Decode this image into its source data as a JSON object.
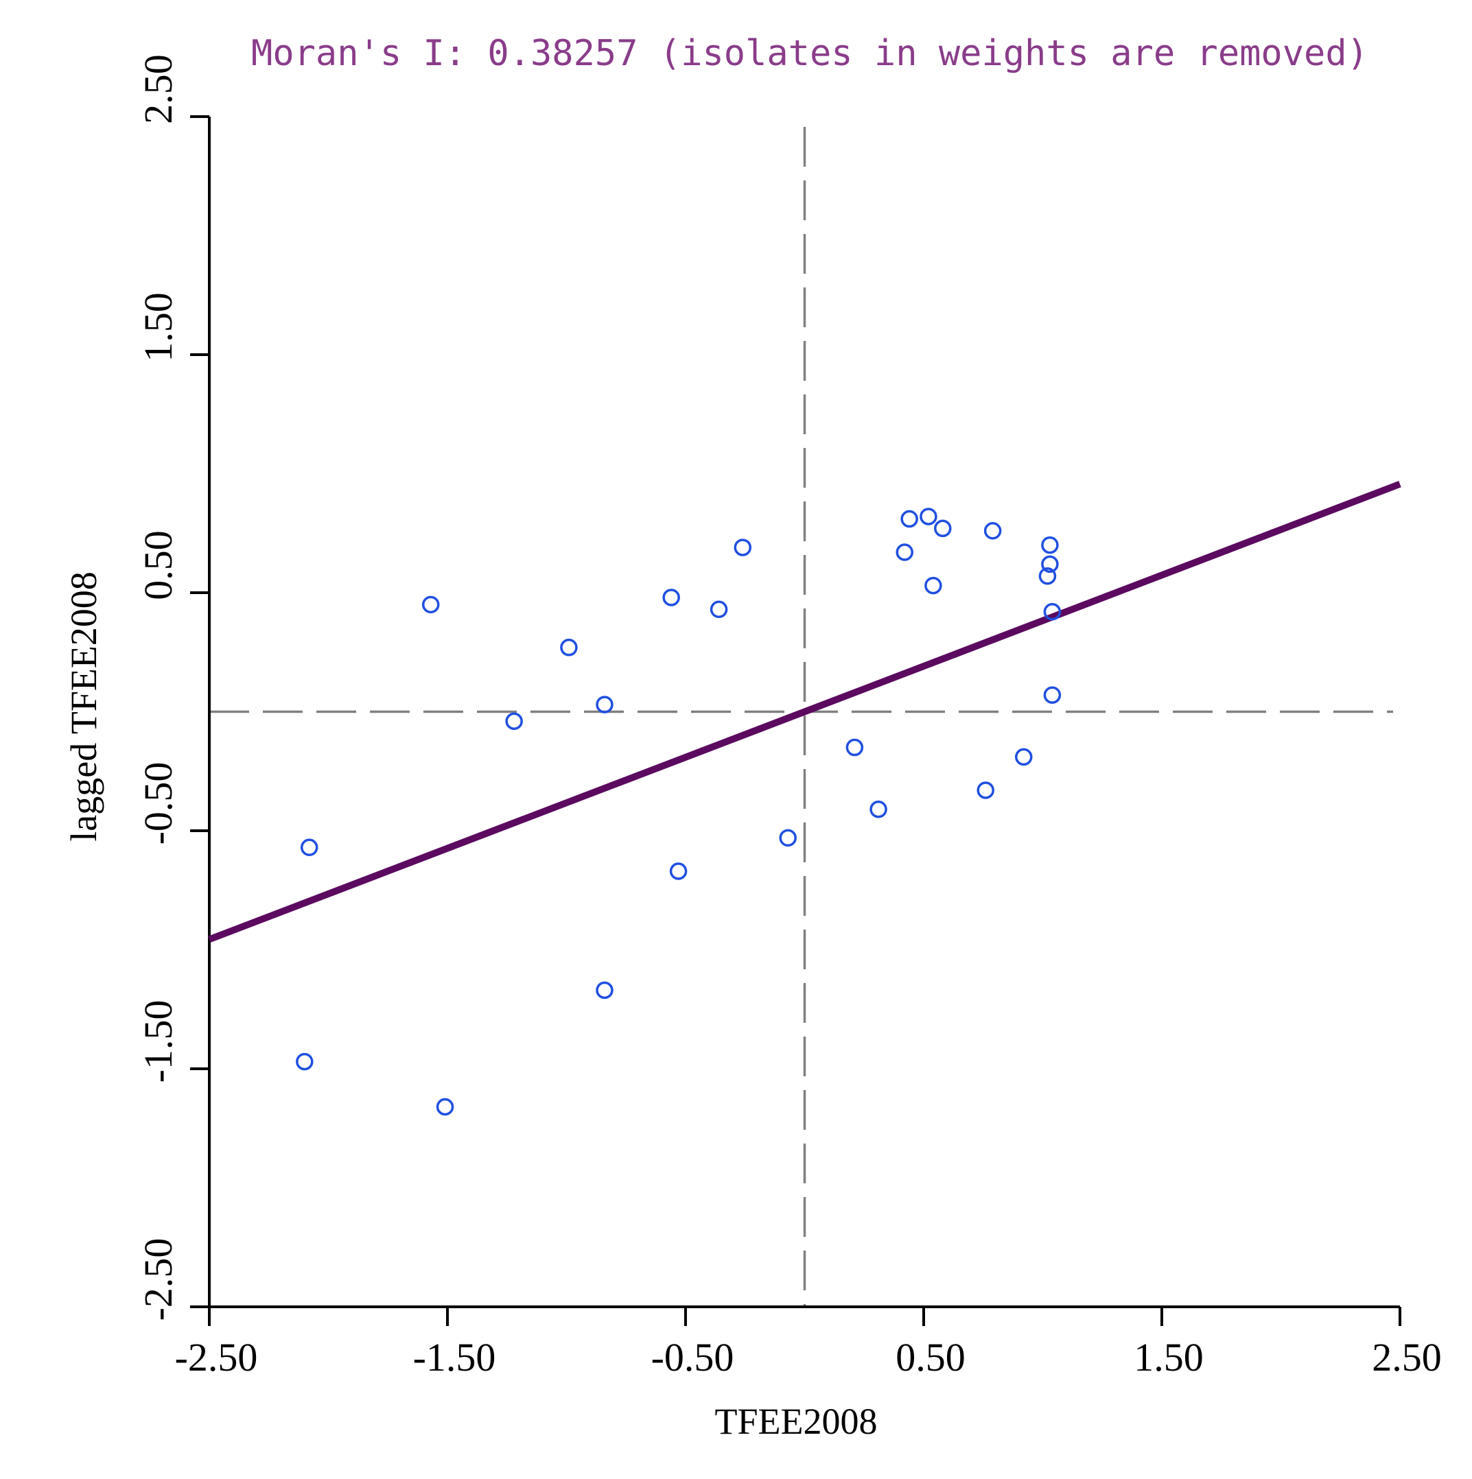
{
  "chart_data": {
    "type": "scatter",
    "title": "Moran's I: 0.38257 (isolates in weights are removed)",
    "xlabel": "TFEE2008",
    "ylabel": "lagged TFEE2008",
    "xlim": [
      -2.5,
      2.5
    ],
    "ylim": [
      -2.5,
      2.5
    ],
    "xticks": [
      -2.5,
      -1.5,
      -0.5,
      0.5,
      1.5,
      2.5
    ],
    "yticks": [
      -2.5,
      -1.5,
      -0.5,
      0.5,
      1.5,
      2.5
    ],
    "xtick_labels": [
      "-2.50",
      "-1.50",
      "-0.50",
      "0.50",
      "1.50",
      "2.50"
    ],
    "ytick_labels": [
      "-2.50",
      "-1.50",
      "-0.50",
      "0.50",
      "1.50",
      "2.50"
    ],
    "reference_lines": {
      "x": 0,
      "y": 0
    },
    "fit_line": {
      "slope": 0.38257,
      "intercept": 0.0,
      "color": "#5b0a5f"
    },
    "point_color": "#1f4fe0",
    "points": [
      {
        "x": -2.1,
        "y": -1.47
      },
      {
        "x": -1.51,
        "y": -1.66
      },
      {
        "x": -0.84,
        "y": -1.17
      },
      {
        "x": -2.08,
        "y": -0.57
      },
      {
        "x": -0.53,
        "y": -0.67
      },
      {
        "x": -0.07,
        "y": -0.53
      },
      {
        "x": -1.57,
        "y": 0.45
      },
      {
        "x": -1.22,
        "y": -0.04
      },
      {
        "x": -0.99,
        "y": 0.27
      },
      {
        "x": -0.84,
        "y": 0.03
      },
      {
        "x": -0.56,
        "y": 0.48
      },
      {
        "x": -0.36,
        "y": 0.43
      },
      {
        "x": -0.26,
        "y": 0.69
      },
      {
        "x": 0.21,
        "y": -0.15
      },
      {
        "x": 0.31,
        "y": -0.41
      },
      {
        "x": 0.76,
        "y": -0.33
      },
      {
        "x": 0.92,
        "y": -0.19
      },
      {
        "x": 0.42,
        "y": 0.67
      },
      {
        "x": 0.44,
        "y": 0.81
      },
      {
        "x": 0.52,
        "y": 0.82
      },
      {
        "x": 0.58,
        "y": 0.77
      },
      {
        "x": 0.54,
        "y": 0.53
      },
      {
        "x": 0.79,
        "y": 0.76
      },
      {
        "x": 1.03,
        "y": 0.7
      },
      {
        "x": 1.03,
        "y": 0.62
      },
      {
        "x": 1.02,
        "y": 0.57
      },
      {
        "x": 1.04,
        "y": 0.42
      },
      {
        "x": 1.04,
        "y": 0.07
      }
    ]
  }
}
